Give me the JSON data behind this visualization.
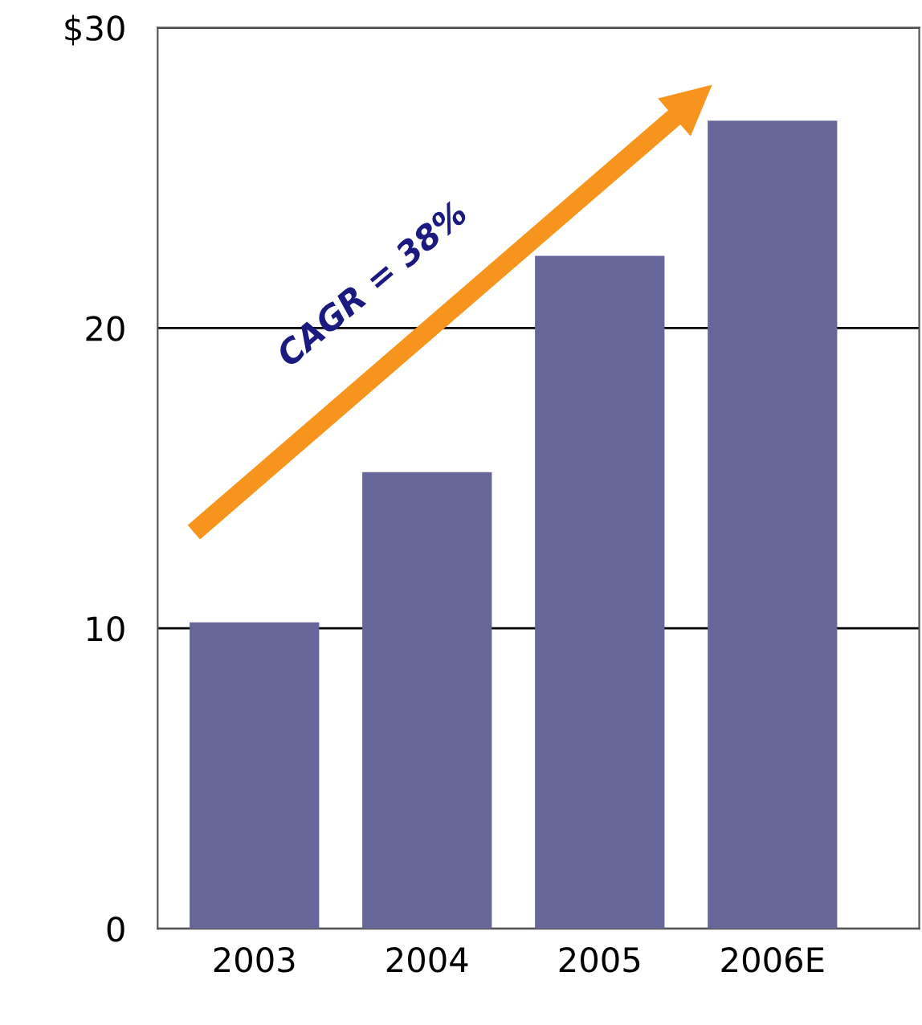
{
  "chart_data": {
    "type": "bar",
    "categories": [
      "2003",
      "2004",
      "2005",
      "2006E"
    ],
    "values": [
      10.2,
      15.2,
      22.4,
      26.9
    ],
    "color": "#666699",
    "ylim": [
      0,
      30
    ],
    "yticks": [
      0,
      10,
      20,
      {
        "value": 30,
        "label": "$30"
      }
    ],
    "grid": "y",
    "annotations": [
      "CAGR = 38%"
    ]
  }
}
